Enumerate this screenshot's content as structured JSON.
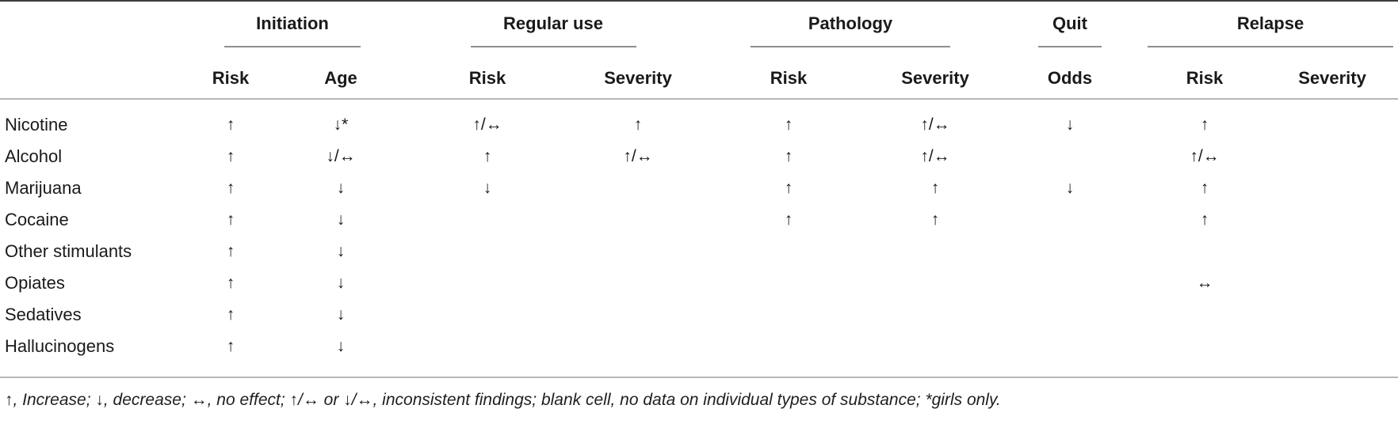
{
  "table": {
    "groups": [
      {
        "label": "Initiation",
        "columns": [
          "Risk",
          "Age"
        ]
      },
      {
        "label": "Regular use",
        "columns": [
          "Risk",
          "Severity"
        ]
      },
      {
        "label": "Pathology",
        "columns": [
          "Risk",
          "Severity"
        ]
      },
      {
        "label": "Quit",
        "columns": [
          "Odds"
        ]
      },
      {
        "label": "Relapse",
        "columns": [
          "Risk",
          "Severity"
        ]
      }
    ],
    "symbols": {
      "increase": "↑",
      "decrease": "↓",
      "no_effect": "↔",
      "inconsistent_up": "↑/↔",
      "inconsistent_down": "↓/↔",
      "girls_only_marker": "*"
    },
    "rows": [
      {
        "substance": "Nicotine",
        "cells": [
          "↑",
          "↓*",
          "↑/↔",
          "↑",
          "↑",
          "↑/↔",
          "↓",
          "↑",
          ""
        ]
      },
      {
        "substance": "Alcohol",
        "cells": [
          "↑",
          "↓/↔",
          "↑",
          "↑/↔",
          "↑",
          "↑/↔",
          "",
          "↑/↔",
          ""
        ]
      },
      {
        "substance": "Marijuana",
        "cells": [
          "↑",
          "↓",
          "↓",
          "",
          "↑",
          "↑",
          "↓",
          "↑",
          ""
        ]
      },
      {
        "substance": "Cocaine",
        "cells": [
          "↑",
          "↓",
          "",
          "",
          "↑",
          "↑",
          "",
          "↑",
          ""
        ]
      },
      {
        "substance": "Other stimulants",
        "cells": [
          "↑",
          "↓",
          "",
          "",
          "",
          "",
          "",
          "",
          ""
        ]
      },
      {
        "substance": "Opiates",
        "cells": [
          "↑",
          "↓",
          "",
          "",
          "",
          "",
          "",
          "↔",
          ""
        ]
      },
      {
        "substance": "Sedatives",
        "cells": [
          "↑",
          "↓",
          "",
          "",
          "",
          "",
          "",
          "",
          ""
        ]
      },
      {
        "substance": "Hallucinogens",
        "cells": [
          "↑",
          "↓",
          "",
          "",
          "",
          "",
          "",
          "",
          ""
        ]
      }
    ],
    "footnote": "↑, Increase; ↓, decrease; ↔, no effect; ↑/↔ or ↓/↔, inconsistent findings; blank cell, no data on individual types of substance; *girls only."
  },
  "colors": {
    "top_rule": "#3d3d3d",
    "group_rule": "#8f8f8f",
    "row_rule": "#b7b7b7",
    "text": "#1a1a1a",
    "background": "#ffffff"
  }
}
